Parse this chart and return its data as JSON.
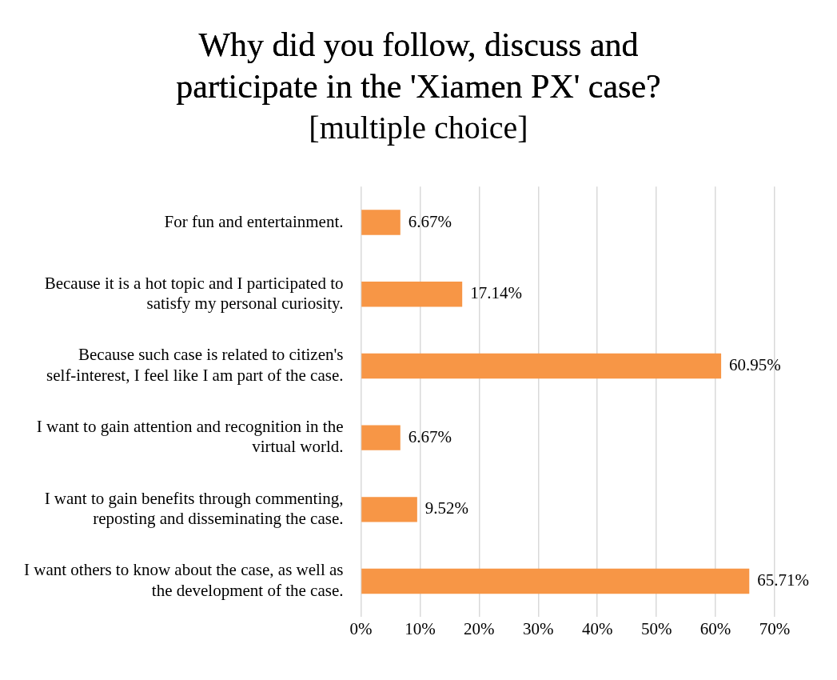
{
  "chart_data": {
    "type": "bar",
    "orientation": "horizontal",
    "title": "Why did you follow, discuss and participate in the 'Xiamen PX' case?",
    "subtitle": "[multiple choice]",
    "categories": [
      "For fun and entertainment.",
      "Because it is a hot topic and I participated to satisfy my personal curiosity.",
      "Because such case is related to citizen's self-interest, I feel like I am part of the case.",
      "I want to gain attention and recognition in the virtual world.",
      "I want to gain benefits through commenting, reposting and disseminating the case.",
      "I want others to know about the case, as well as the development of the case."
    ],
    "values": [
      6.67,
      17.14,
      60.95,
      6.67,
      9.52,
      65.71
    ],
    "value_labels": [
      "6.67%",
      "17.14%",
      "60.95%",
      "6.67%",
      "9.52%",
      "65.71%"
    ],
    "color": "#f79646",
    "xlim": [
      0,
      70
    ],
    "xticks": [
      {
        "value": 0,
        "label": "0%"
      },
      {
        "value": 10,
        "label": "10%"
      },
      {
        "value": 20,
        "label": "20%"
      },
      {
        "value": 30,
        "label": "30%"
      },
      {
        "value": 40,
        "label": "40%"
      },
      {
        "value": 50,
        "label": "50%"
      },
      {
        "value": 60,
        "label": "60%"
      },
      {
        "value": 70,
        "label": "70%"
      }
    ],
    "grid": "x",
    "legend": false
  }
}
